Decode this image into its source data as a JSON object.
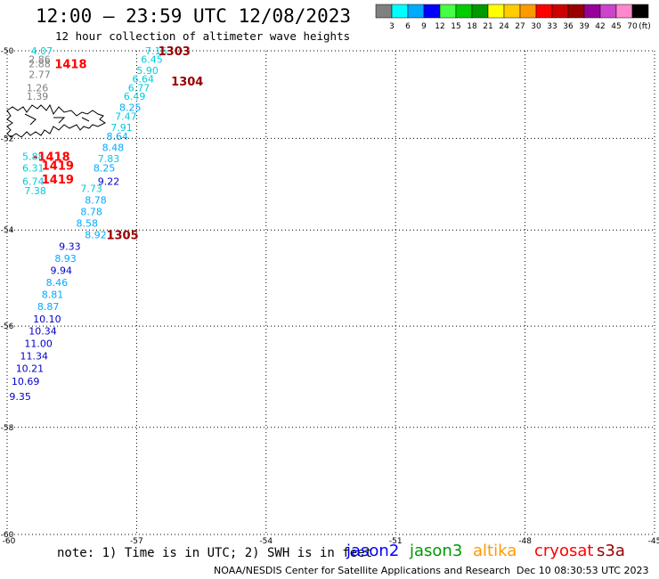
{
  "title": "12:00 – 23:59 UTC 12/08/2023",
  "subtitle": "12 hour collection of altimeter wave heights",
  "note": "note:  1) Time is in UTC;  2) SWH is in feet",
  "credit": "NOAA/NESDIS Center for Satellite Applications and Research",
  "timestamp": "Dec 10 08:30:53 UTC 2023",
  "legend": {
    "unit": "(ft)",
    "labels": [
      "3",
      "6",
      "9",
      "12",
      "15",
      "18",
      "21",
      "24",
      "27",
      "30",
      "33",
      "36",
      "39",
      "42",
      "45",
      "70"
    ],
    "colors": [
      "#808080",
      "#00ffff",
      "#00aaff",
      "#0000ff",
      "#44ff44",
      "#00cc00",
      "#009900",
      "#ffff00",
      "#ffcc00",
      "#ff9900",
      "#ff0000",
      "#cc0000",
      "#990000",
      "#990099",
      "#cc44cc",
      "#ff88cc",
      "#000000"
    ]
  },
  "missions": [
    {
      "name": "jason2",
      "color": "#0000ff"
    },
    {
      "name": "jason3",
      "color": "#009900"
    },
    {
      "name": "altika",
      "color": "#ff9900"
    },
    {
      "name": "cryosat",
      "color": "#ff0000"
    },
    {
      "name": "s3a",
      "color": "#990000"
    }
  ],
  "map": {
    "lon_range": [
      -60,
      -45
    ],
    "lat_range": [
      -60,
      -50
    ],
    "lon_ticks": [
      "-60",
      "-57",
      "-54",
      "-51",
      "-48",
      "-45"
    ],
    "lat_ticks": [
      "-50",
      "-52",
      "-54",
      "-56",
      "-58",
      "-60"
    ],
    "grid": true
  },
  "track_labels": [
    {
      "text": "1303",
      "lon": -56.5,
      "lat": -50.0,
      "color": "#990000"
    },
    {
      "text": "1304",
      "lon": -56.2,
      "lat": -50.7,
      "color": "#990000"
    },
    {
      "text": "1305",
      "lon": -57.7,
      "lat": -54.1,
      "color": "#990000"
    },
    {
      "text": "1418",
      "lon": -58.9,
      "lat": -50.3,
      "color": "#ff0000"
    },
    {
      "text": "-1418",
      "lon": -59.4,
      "lat": -52.4,
      "color": "#ff0000"
    },
    {
      "text": "1419",
      "lon": -59.2,
      "lat": -52.6,
      "color": "#ff0000"
    },
    {
      "text": "1419",
      "lon": -59.2,
      "lat": -52.9,
      "color": "#ff0000"
    }
  ],
  "observations": [
    {
      "v": "7.16",
      "lon": -56.8,
      "lat": -50.0,
      "c": "#00ccdd"
    },
    {
      "v": "6.45",
      "lon": -56.9,
      "lat": -50.2,
      "c": "#00ccdd"
    },
    {
      "v": "5.90",
      "lon": -57.0,
      "lat": -50.45,
      "c": "#00ccdd"
    },
    {
      "v": "6.64",
      "lon": -57.1,
      "lat": -50.65,
      "c": "#00ccdd"
    },
    {
      "v": "6.77",
      "lon": -57.2,
      "lat": -50.85,
      "c": "#00ccdd"
    },
    {
      "v": "6.49",
      "lon": -57.3,
      "lat": -51.05,
      "c": "#00ccdd"
    },
    {
      "v": "8.25",
      "lon": -57.4,
      "lat": -51.3,
      "c": "#00aaff"
    },
    {
      "v": "7.47",
      "lon": -57.5,
      "lat": -51.5,
      "c": "#00ccdd"
    },
    {
      "v": "7.91",
      "lon": -57.6,
      "lat": -51.75,
      "c": "#00ccdd"
    },
    {
      "v": "8.64",
      "lon": -57.7,
      "lat": -51.95,
      "c": "#00aaff"
    },
    {
      "v": "8.48",
      "lon": -57.8,
      "lat": -52.2,
      "c": "#00aaff"
    },
    {
      "v": "7.83",
      "lon": -57.9,
      "lat": -52.45,
      "c": "#00ccdd"
    },
    {
      "v": "8.25",
      "lon": -58.0,
      "lat": -52.65,
      "c": "#00aaff"
    },
    {
      "v": "9.22",
      "lon": -57.9,
      "lat": -52.95,
      "c": "#0000cc"
    },
    {
      "v": "7.73",
      "lon": -58.3,
      "lat": -53.1,
      "c": "#00ccdd"
    },
    {
      "v": "8.78",
      "lon": -58.2,
      "lat": -53.35,
      "c": "#00aaff"
    },
    {
      "v": "8.78",
      "lon": -58.3,
      "lat": -53.6,
      "c": "#00aaff"
    },
    {
      "v": "8.58",
      "lon": -58.4,
      "lat": -53.85,
      "c": "#00aaff"
    },
    {
      "v": "8.92",
      "lon": -58.2,
      "lat": -54.1,
      "c": "#00aaff"
    },
    {
      "v": "9.33",
      "lon": -58.8,
      "lat": -54.35,
      "c": "#0000cc"
    },
    {
      "v": "8.93",
      "lon": -58.9,
      "lat": -54.6,
      "c": "#00aaff"
    },
    {
      "v": "9.94",
      "lon": -59.0,
      "lat": -54.85,
      "c": "#0000cc"
    },
    {
      "v": "8.46",
      "lon": -59.1,
      "lat": -55.1,
      "c": "#00aaff"
    },
    {
      "v": "8.81",
      "lon": -59.2,
      "lat": -55.35,
      "c": "#00aaff"
    },
    {
      "v": "8.87",
      "lon": -59.3,
      "lat": -55.6,
      "c": "#00aaff"
    },
    {
      "v": "10.10",
      "lon": -59.4,
      "lat": -55.85,
      "c": "#0000cc"
    },
    {
      "v": "10.34",
      "lon": -59.5,
      "lat": -56.1,
      "c": "#0000cc"
    },
    {
      "v": "11.00",
      "lon": -59.6,
      "lat": -56.35,
      "c": "#0000cc"
    },
    {
      "v": "11.34",
      "lon": -59.7,
      "lat": -56.6,
      "c": "#0000cc"
    },
    {
      "v": "10.21",
      "lon": -59.8,
      "lat": -56.85,
      "c": "#0000cc"
    },
    {
      "v": "10.69",
      "lon": -59.9,
      "lat": -57.1,
      "c": "#0000cc"
    },
    {
      "v": "9.35",
      "lon": -59.95,
      "lat": -57.4,
      "c": "#0000cc"
    },
    {
      "v": "4.07",
      "lon": -59.45,
      "lat": -50.0,
      "c": "#00ccdd"
    },
    {
      "v": "2.86",
      "lon": -59.5,
      "lat": -50.2,
      "c": "#808080"
    },
    {
      "v": "2.88",
      "lon": -59.5,
      "lat": -50.3,
      "c": "#808080"
    },
    {
      "v": "2.77",
      "lon": -59.5,
      "lat": -50.55,
      "c": "#808080"
    },
    {
      "v": "1.26",
      "lon": -59.55,
      "lat": -50.85,
      "c": "#808080"
    },
    {
      "v": "1.39",
      "lon": -59.55,
      "lat": -51.05,
      "c": "#808080"
    },
    {
      "v": "5.88",
      "lon": -59.65,
      "lat": -52.4,
      "c": "#00ccdd"
    },
    {
      "v": "6.31",
      "lon": -59.65,
      "lat": -52.65,
      "c": "#00ccdd"
    },
    {
      "v": "6.74",
      "lon": -59.65,
      "lat": -52.95,
      "c": "#00ccdd"
    },
    {
      "v": "7.38",
      "lon": -59.6,
      "lat": -53.15,
      "c": "#00ccdd"
    }
  ]
}
